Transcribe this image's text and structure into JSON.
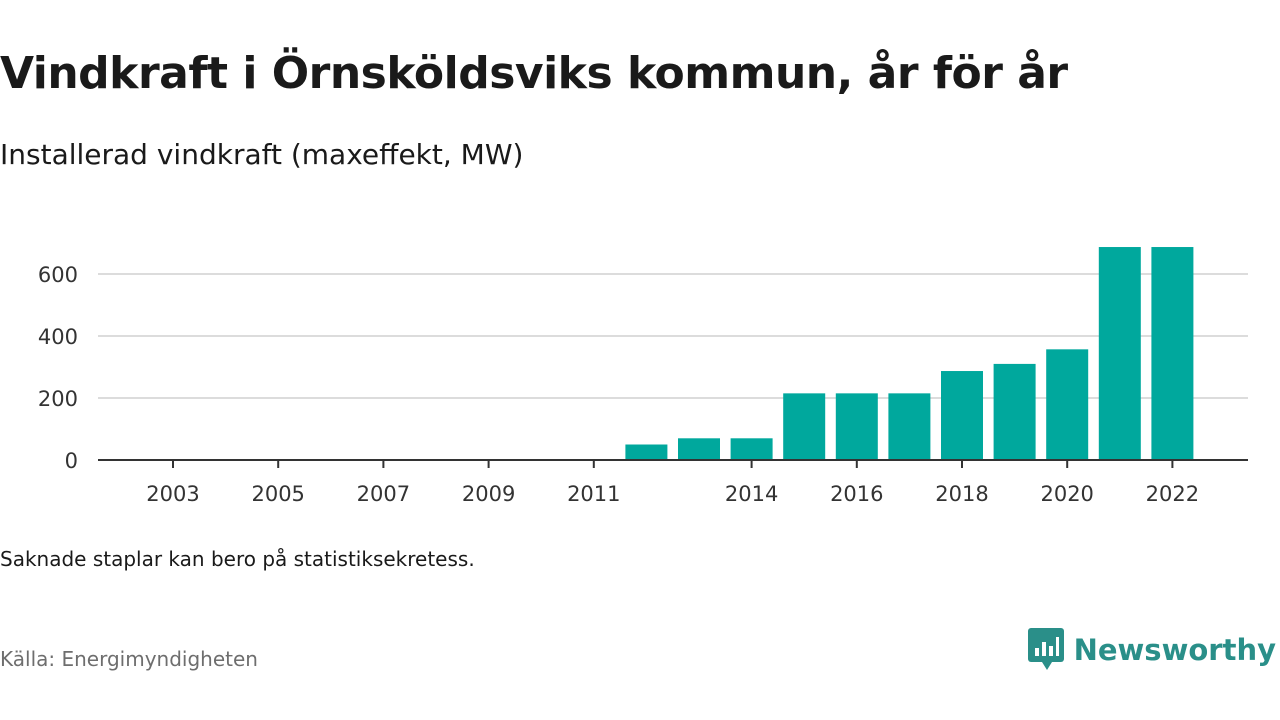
{
  "header": {
    "title": "Vindkraft i Örnsköldsviks kommun, år för år",
    "subtitle": "Installerad vindkraft (maxeffekt, MW)"
  },
  "footer": {
    "note": "Saknade staplar kan bero på statistiksekretess.",
    "source": "Källa: Energimyndigheten",
    "brand": "Newsworthy",
    "brand_icon": "newsworthy-logo-icon"
  },
  "colors": {
    "bar": "#00a89d",
    "grid": "#dcdcdc",
    "axis": "#333333",
    "brand": "#2a8f89"
  },
  "chart_data": {
    "type": "bar",
    "title": "Vindkraft i Örnsköldsviks kommun, år för år",
    "subtitle": "Installerad vindkraft (maxeffekt, MW)",
    "xlabel": "",
    "ylabel": "",
    "x": [
      2003,
      2004,
      2005,
      2006,
      2007,
      2008,
      2009,
      2010,
      2011,
      2012,
      2013,
      2014,
      2015,
      2016,
      2017,
      2018,
      2019,
      2020,
      2021,
      2022
    ],
    "values": [
      0,
      0,
      0,
      0,
      0,
      0,
      0,
      0,
      0,
      50,
      70,
      70,
      215,
      215,
      215,
      287,
      310,
      357,
      687,
      687
    ],
    "x_tick_labels": [
      "2003",
      "2005",
      "2007",
      "2009",
      "2011",
      "2014",
      "2016",
      "2018",
      "2020",
      "2022"
    ],
    "y_ticks": [
      0,
      200,
      400,
      600
    ],
    "ylim": [
      0,
      690
    ],
    "grid": true,
    "legend": "none"
  }
}
